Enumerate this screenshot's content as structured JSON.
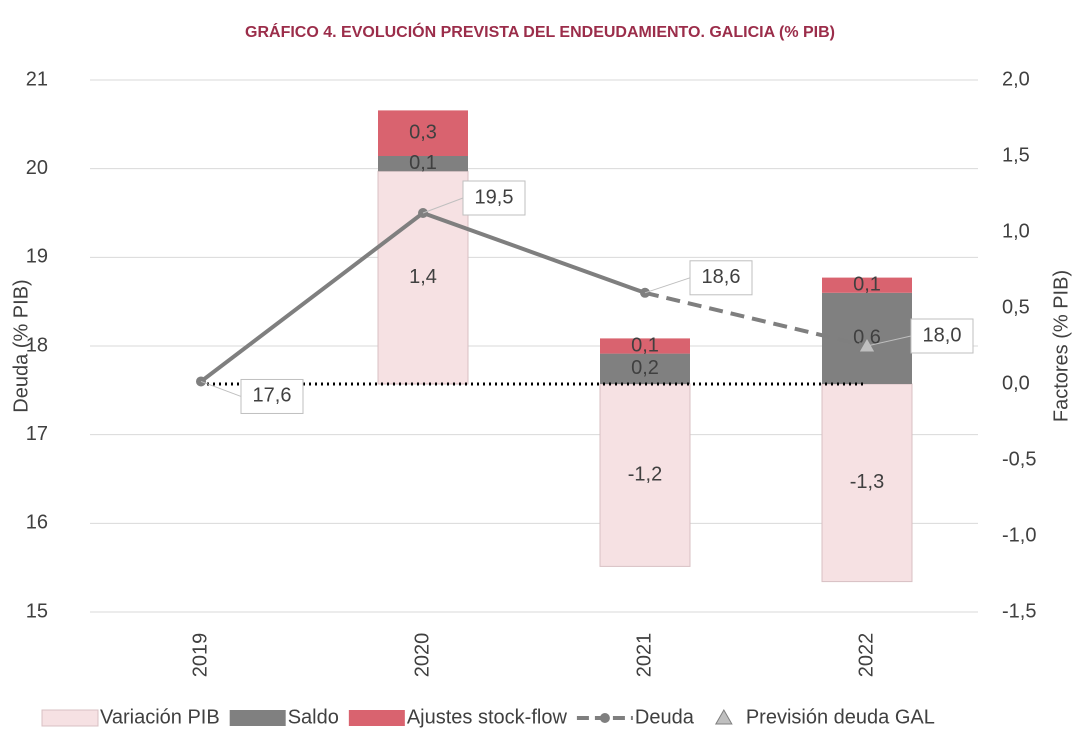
{
  "chart_data": {
    "type": "bar-line",
    "title": "GRÁFICO 4. EVOLUCIÓN PREVISTA DEL ENDEUDAMIENTO. GALICIA (% PIB)",
    "y_label": "Deuda (% PIB)",
    "y2_label": "Factores (% PIB)",
    "categories": [
      "2019",
      "2020",
      "2021",
      "2022"
    ],
    "ylim": [
      15,
      21
    ],
    "yticks": [
      15,
      16,
      17,
      18,
      19,
      20,
      21
    ],
    "y2lim": [
      -1.5,
      2.0
    ],
    "y2ticks": [
      {
        "value": -1.5,
        "label": "-1,5"
      },
      {
        "value": -1.0,
        "label": "-1,0"
      },
      {
        "value": -0.5,
        "label": "-0,5"
      },
      {
        "value": 0.0,
        "label": "0,0"
      },
      {
        "value": 0.5,
        "label": "0,5"
      },
      {
        "value": 1.0,
        "label": "1,0"
      },
      {
        "value": 1.5,
        "label": "1,5"
      },
      {
        "value": 2.0,
        "label": "2,0"
      }
    ],
    "grid": true,
    "legend": "bottom",
    "dash_from": "2021",
    "series": [
      {
        "name": "Variación PIB",
        "type": "bar",
        "axis": "y2",
        "color": "#f6e1e3",
        "values": [
          null,
          1.4,
          -1.2,
          -1.3
        ],
        "value_labels": [
          null,
          "1,4",
          "-1,2",
          "-1,3"
        ]
      },
      {
        "name": "Saldo",
        "type": "bar",
        "axis": "y2",
        "color": "#808080",
        "values": [
          null,
          0.1,
          0.2,
          0.6
        ],
        "value_labels": [
          null,
          "0,1",
          "0,2",
          "0,6"
        ]
      },
      {
        "name": "Ajustes stock-flow",
        "type": "bar",
        "axis": "y2",
        "color": "#d9636f",
        "values": [
          null,
          0.3,
          0.1,
          0.1
        ],
        "value_labels": [
          null,
          "0,3",
          "0,1",
          "0,1"
        ]
      },
      {
        "name": "Deuda",
        "type": "line",
        "axis": "y",
        "color": "#7f7f7f",
        "values": [
          17.6,
          19.5,
          18.6,
          18.0
        ],
        "value_labels": [
          "17,6",
          "19,5",
          "18,6",
          null
        ]
      },
      {
        "name": "Previsión deuda GAL",
        "type": "marker",
        "axis": "y",
        "color": "#bfbfbf",
        "values": [
          null,
          null,
          null,
          18.0
        ],
        "value_labels": [
          null,
          null,
          null,
          "18,0"
        ]
      }
    ]
  }
}
